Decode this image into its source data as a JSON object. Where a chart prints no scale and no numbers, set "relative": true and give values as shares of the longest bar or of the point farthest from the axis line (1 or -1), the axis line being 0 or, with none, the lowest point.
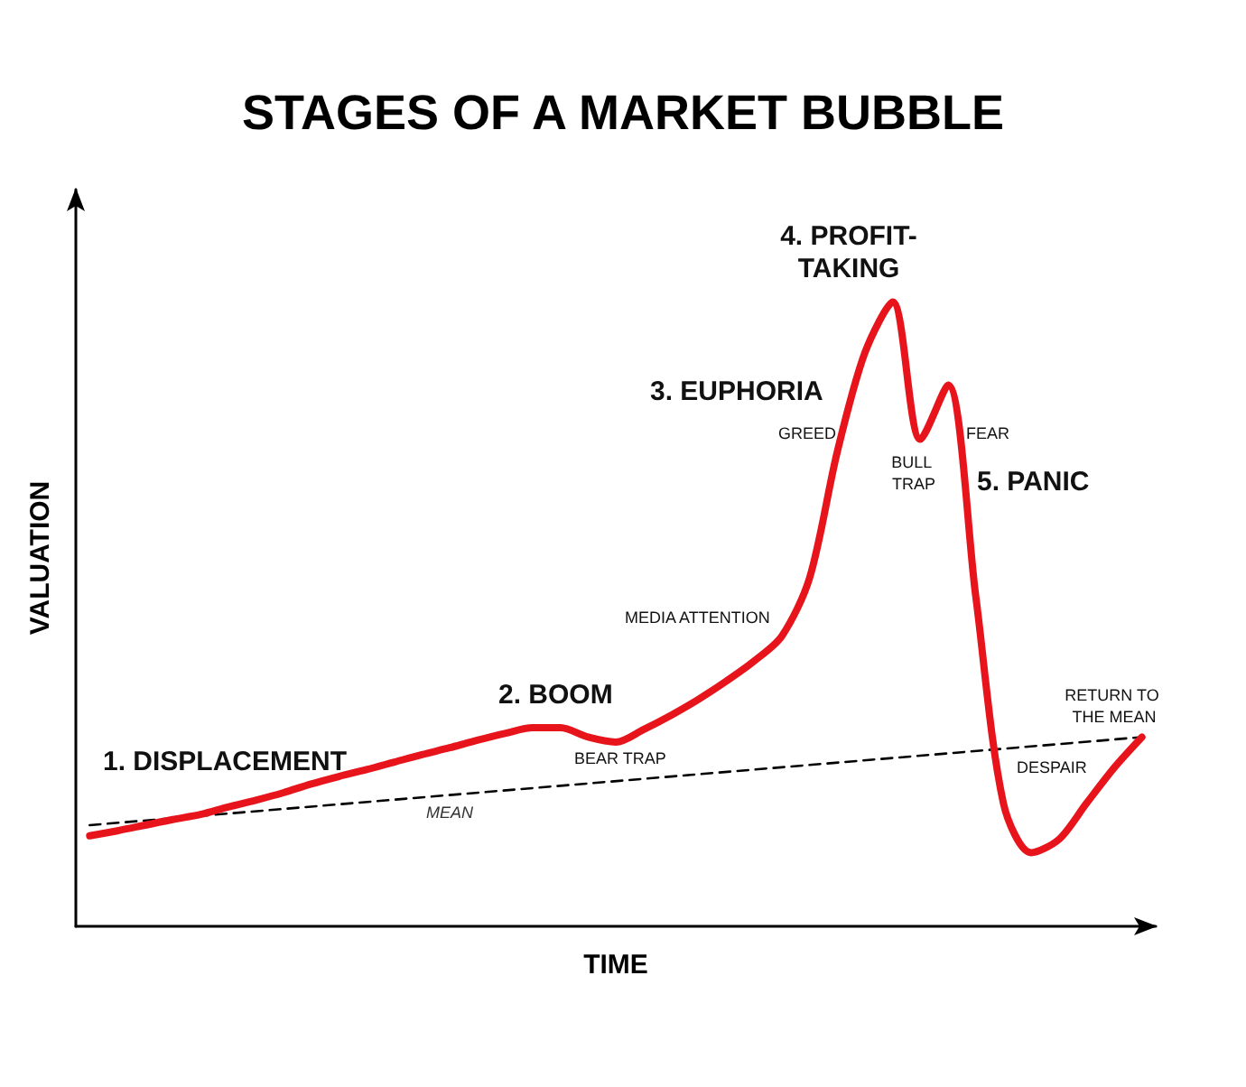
{
  "chart_data": {
    "type": "line",
    "title": "STAGES OF A MARKET BUBBLE",
    "xlabel": "TIME",
    "ylabel": "VALUATION",
    "relative": true,
    "grid": false,
    "legend": false,
    "marker": "none",
    "categories": [
      null,
      null,
      null,
      null,
      null,
      null,
      null,
      null,
      null,
      null,
      null,
      null,
      null,
      null,
      null,
      null,
      null,
      null,
      null,
      null,
      null,
      null,
      null,
      null,
      null,
      null,
      null,
      null,
      null,
      null,
      null,
      null,
      null,
      null,
      null,
      null,
      null,
      null,
      null
    ],
    "series": [
      {
        "color": "#e8141c",
        "line_style": "solid",
        "values": [
          0.145,
          0.153,
          0.162,
          0.171,
          0.179,
          0.191,
          0.202,
          0.214,
          0.228,
          0.24,
          0.251,
          0.263,
          0.275,
          0.286,
          0.298,
          0.309,
          0.318,
          0.318,
          0.303,
          0.295,
          0.315,
          0.338,
          0.364,
          0.393,
          0.425,
          0.465,
          0.558,
          0.76,
          0.919,
          1,
          0.78,
          0.867,
          0.529,
          0.197,
          0.118,
          0.139,
          0.197,
          0.254,
          0.303
        ]
      },
      {
        "name": "MEAN",
        "color": "#000000",
        "line_style": "dashed",
        "values": [
          0.162,
          null,
          null,
          null,
          null,
          null,
          null,
          null,
          null,
          null,
          null,
          null,
          null,
          null,
          null,
          null,
          null,
          null,
          null,
          null,
          null,
          null,
          null,
          null,
          null,
          null,
          null,
          null,
          null,
          null,
          null,
          null,
          null,
          null,
          null,
          null,
          null,
          null,
          0.303
        ]
      }
    ],
    "annotations": [
      "1. DISPLACEMENT",
      "2. BOOM",
      "BEAR TRAP",
      "MEDIA ATTENTION",
      "3. EUPHORIA",
      "GREED",
      "4. PROFIT-TAKING",
      "BULL TRAP",
      "FEAR",
      "5. PANIC",
      "DESPAIR",
      "RETURN TO THE MEAN"
    ]
  }
}
